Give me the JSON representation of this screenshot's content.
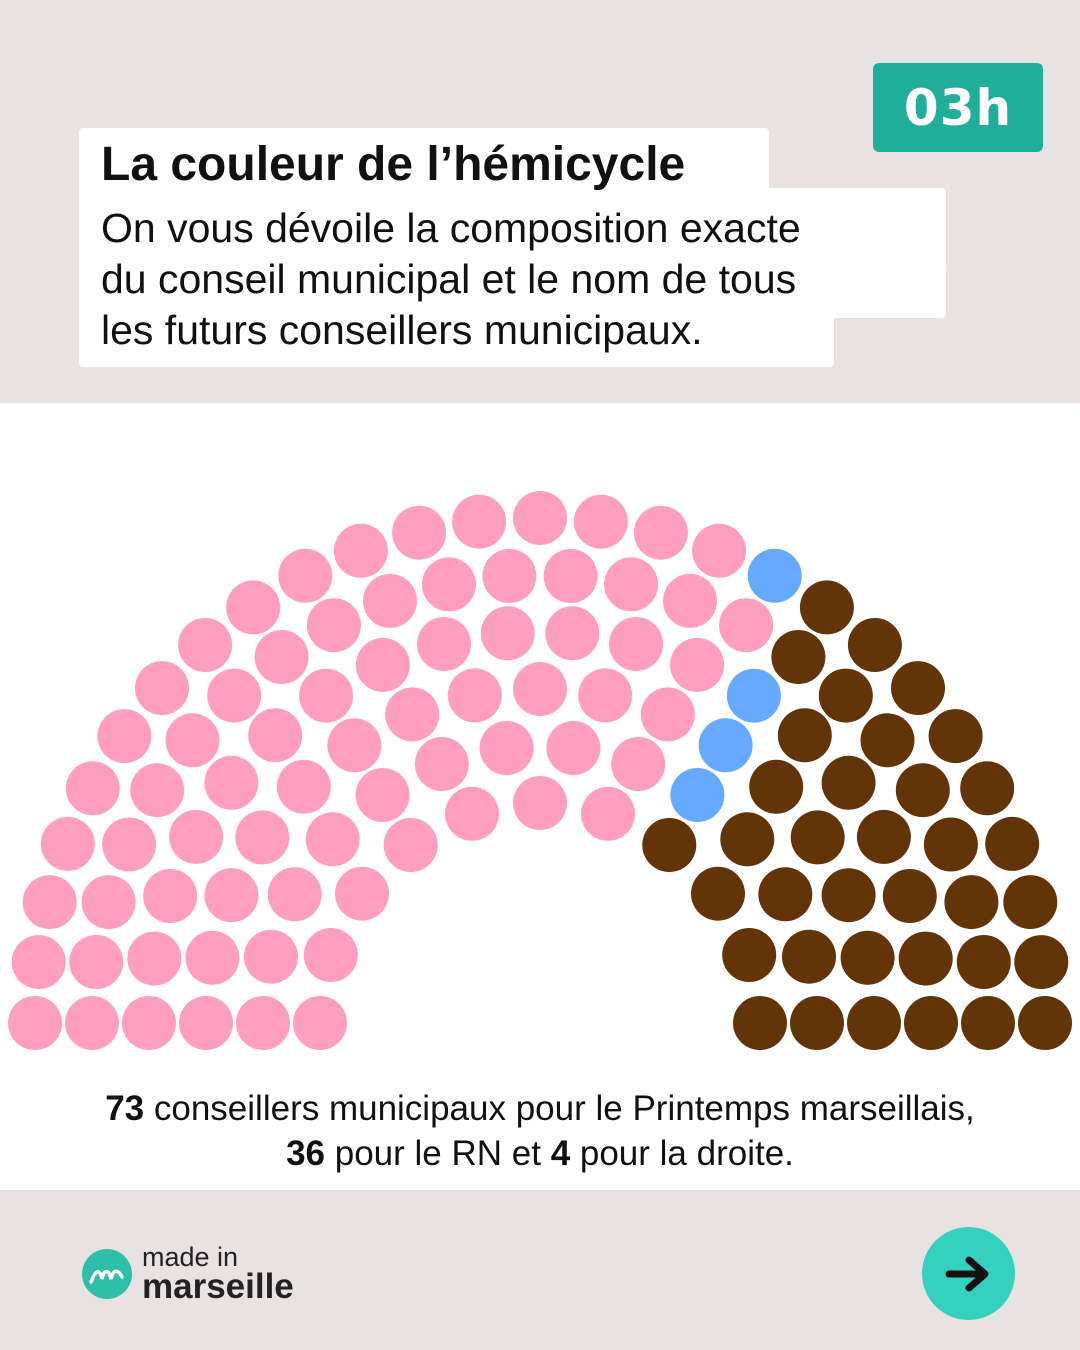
{
  "badge": {
    "time": "03h"
  },
  "header": {
    "title": "La couleur de l’hémicycle",
    "subtitle_lines": [
      "On vous dévoile la composition exacte",
      "du conseil municipal et le nom de tous",
      "les futurs conseillers municipaux."
    ]
  },
  "caption": {
    "line1_count": "73",
    "line1_text": " conseillers municipaux pour le Printemps marseillais,",
    "line2_count_a": "36",
    "line2_text_a": " pour le RN et ",
    "line2_count_b": "4",
    "line2_text_b": " pour la droite."
  },
  "brand": {
    "made_in": "made in",
    "name": "marseille"
  },
  "colors": {
    "printemps": "#ff9fc0",
    "droite": "#66aaff",
    "rn": "#623408",
    "badge": "#1fae9a",
    "next_button": "#33d1be"
  },
  "icons": {
    "next": "arrow-right-icon",
    "logo": "made-in-marseille-logo"
  },
  "chart_data": {
    "type": "parliament",
    "title": "",
    "total_seats": 113,
    "series": [
      {
        "name": "Printemps marseillais",
        "values": [
          73
        ],
        "color": "#ff9fc0"
      },
      {
        "name": "droite",
        "values": [
          4
        ],
        "color": "#66aaff"
      },
      {
        "name": "RN",
        "values": [
          36
        ],
        "color": "#623408"
      }
    ]
  }
}
